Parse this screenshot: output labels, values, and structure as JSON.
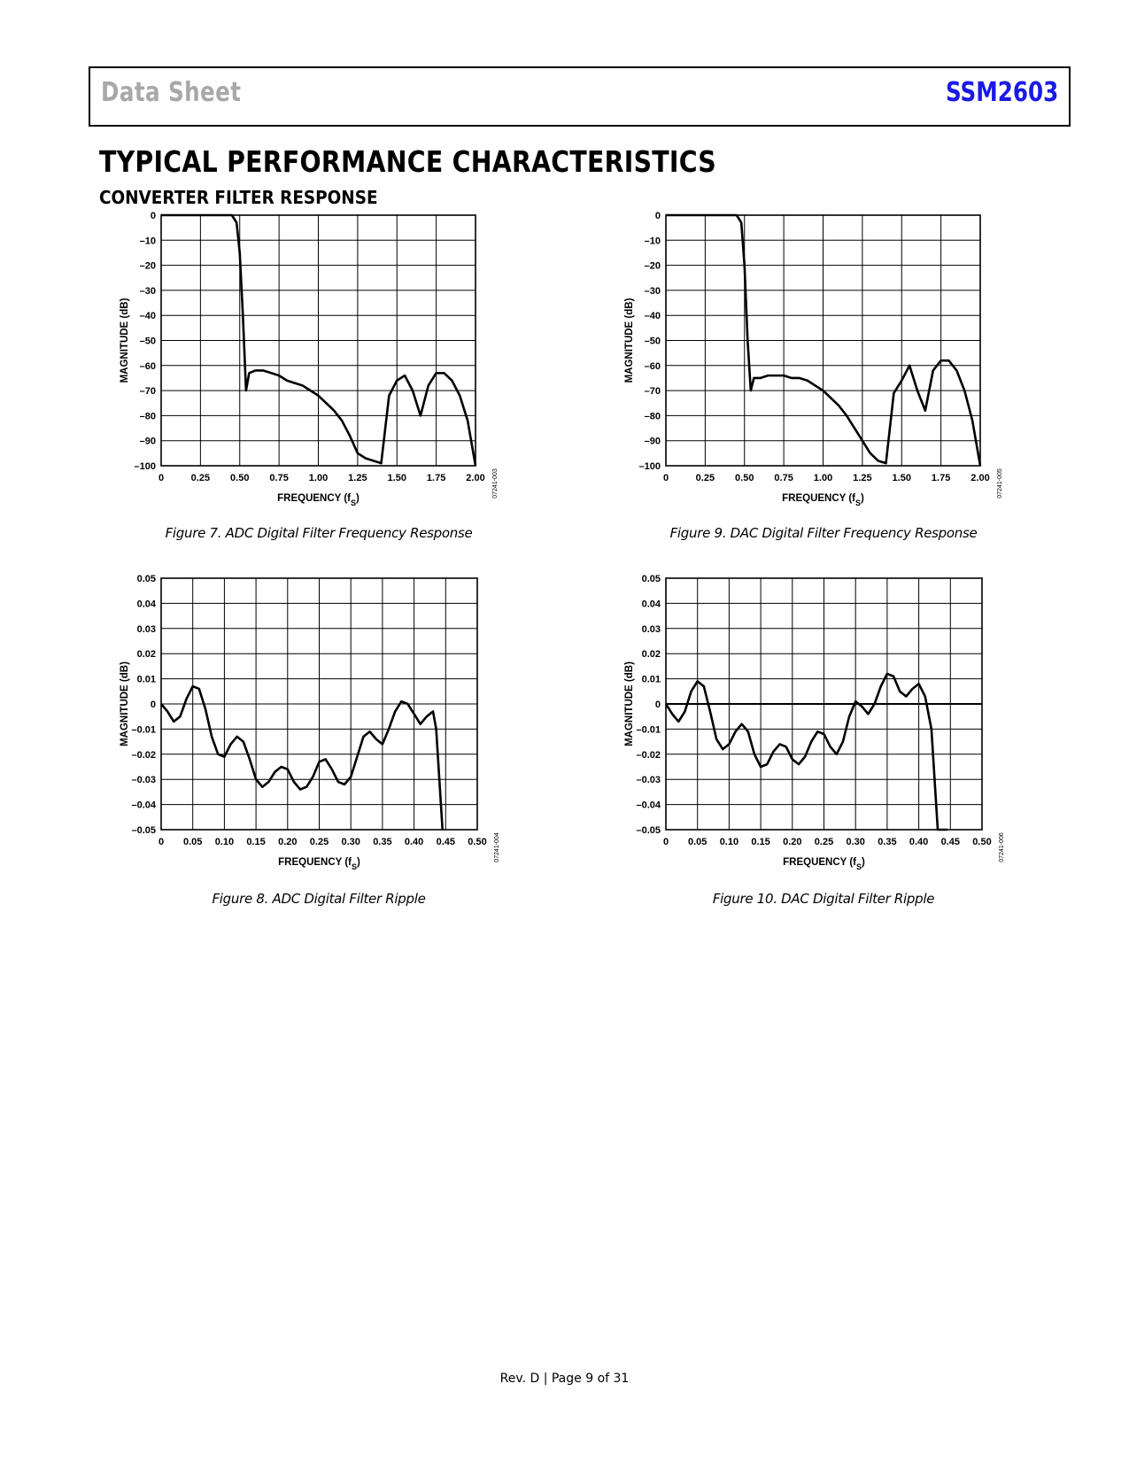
{
  "header": {
    "left": "Data Sheet",
    "right": "SSM2603",
    "right_color": "#1a1ae6",
    "left_color": "#a8a8a8"
  },
  "page_title": "TYPICAL PERFORMANCE CHARACTERISTICS",
  "section_title": "CONVERTER FILTER RESPONSE",
  "figures": [
    {
      "caption": "Figure 7. ADC Digital Filter Frequency Response",
      "code": "07241-003"
    },
    {
      "caption": "Figure 9. DAC Digital Filter Frequency Response",
      "code": "07241-005"
    },
    {
      "caption": "Figure 8. ADC Digital Filter Ripple",
      "code": "07241-004"
    },
    {
      "caption": "Figure 10. DAC Digital Filter Ripple",
      "code": "07241-006"
    }
  ],
  "footer": "Rev. D | Page 9 of 31",
  "chart_data": [
    {
      "type": "line",
      "ylabel": "MAGNITUDE (dB)",
      "xlabel": "FREQUENCY (fS)",
      "xlim": [
        0,
        2.0
      ],
      "ylim": [
        -100,
        0
      ],
      "xticks": [
        "0",
        "0.25",
        "0.50",
        "0.75",
        "1.00",
        "1.25",
        "1.50",
        "1.75",
        "2.00"
      ],
      "yticks": [
        "0",
        "–10",
        "–20",
        "–30",
        "–40",
        "–50",
        "–60",
        "–70",
        "–80",
        "–90",
        "–100"
      ],
      "grid": true,
      "x": [
        0,
        0.45,
        0.48,
        0.5,
        0.52,
        0.54,
        0.56,
        0.6,
        0.65,
        0.7,
        0.75,
        0.8,
        0.85,
        0.9,
        0.95,
        1.0,
        1.05,
        1.1,
        1.15,
        1.2,
        1.25,
        1.3,
        1.35,
        1.4,
        1.45,
        1.5,
        1.55,
        1.6,
        1.65,
        1.7,
        1.75,
        1.8,
        1.85,
        1.9,
        1.95,
        2.0
      ],
      "y": [
        0,
        0,
        -3,
        -15,
        -40,
        -70,
        -63,
        -62,
        -62,
        -63,
        -64,
        -66,
        -67,
        -68,
        -70,
        -72,
        -75,
        -78,
        -82,
        -88,
        -95,
        -97,
        -98,
        -99,
        -72,
        -66,
        -64,
        -70,
        -80,
        -68,
        -63,
        -63,
        -66,
        -72,
        -82,
        -100
      ]
    },
    {
      "type": "line",
      "ylabel": "MAGNITUDE (dB)",
      "xlabel": "FREQUENCY (fS)",
      "xlim": [
        0,
        2.0
      ],
      "ylim": [
        -100,
        0
      ],
      "xticks": [
        "0",
        "0.25",
        "0.50",
        "0.75",
        "1.00",
        "1.25",
        "1.50",
        "1.75",
        "2.00"
      ],
      "yticks": [
        "0",
        "–10",
        "–20",
        "–30",
        "–40",
        "–50",
        "–60",
        "–70",
        "–80",
        "–90",
        "–100"
      ],
      "grid": true,
      "x": [
        0,
        0.45,
        0.48,
        0.5,
        0.52,
        0.54,
        0.56,
        0.6,
        0.65,
        0.7,
        0.75,
        0.8,
        0.85,
        0.9,
        0.95,
        1.0,
        1.05,
        1.1,
        1.15,
        1.2,
        1.25,
        1.3,
        1.35,
        1.4,
        1.45,
        1.5,
        1.55,
        1.6,
        1.65,
        1.7,
        1.75,
        1.8,
        1.85,
        1.9,
        1.95,
        2.0
      ],
      "y": [
        0,
        0,
        -3,
        -20,
        -50,
        -70,
        -65,
        -65,
        -64,
        -64,
        -64,
        -65,
        -65,
        -66,
        -68,
        -70,
        -73,
        -76,
        -80,
        -85,
        -90,
        -95,
        -98,
        -99,
        -71,
        -66,
        -60,
        -70,
        -78,
        -62,
        -58,
        -58,
        -62,
        -70,
        -82,
        -100
      ]
    },
    {
      "type": "line",
      "ylabel": "MAGNITUDE (dB)",
      "xlabel": "FREQUENCY (fS)",
      "xlim": [
        0,
        0.5
      ],
      "ylim": [
        -0.05,
        0.05
      ],
      "xticks": [
        "0",
        "0.05",
        "0.10",
        "0.15",
        "0.20",
        "0.25",
        "0.30",
        "0.35",
        "0.40",
        "0.45",
        "0.50"
      ],
      "yticks": [
        "0.05",
        "0.04",
        "0.03",
        "0.02",
        "0.01",
        "0",
        "–0.01",
        "–0.02",
        "–0.03",
        "–0.04",
        "–0.05"
      ],
      "grid": true,
      "x": [
        0,
        0.01,
        0.02,
        0.03,
        0.04,
        0.05,
        0.06,
        0.07,
        0.08,
        0.09,
        0.1,
        0.11,
        0.12,
        0.13,
        0.14,
        0.15,
        0.16,
        0.17,
        0.18,
        0.19,
        0.2,
        0.21,
        0.22,
        0.23,
        0.24,
        0.25,
        0.26,
        0.27,
        0.28,
        0.29,
        0.3,
        0.31,
        0.32,
        0.33,
        0.34,
        0.35,
        0.36,
        0.37,
        0.38,
        0.39,
        0.4,
        0.41,
        0.42,
        0.43,
        0.435,
        0.44,
        0.445
      ],
      "y": [
        0,
        -0.003,
        -0.007,
        -0.005,
        0.002,
        0.007,
        0.006,
        -0.002,
        -0.013,
        -0.02,
        -0.021,
        -0.016,
        -0.013,
        -0.015,
        -0.022,
        -0.03,
        -0.033,
        -0.031,
        -0.027,
        -0.025,
        -0.026,
        -0.031,
        -0.034,
        -0.033,
        -0.029,
        -0.023,
        -0.022,
        -0.026,
        -0.031,
        -0.032,
        -0.029,
        -0.021,
        -0.013,
        -0.011,
        -0.014,
        -0.016,
        -0.01,
        -0.003,
        0.001,
        0.0,
        -0.004,
        -0.008,
        -0.005,
        -0.003,
        -0.01,
        -0.03,
        -0.05
      ]
    },
    {
      "type": "line",
      "ylabel": "MAGNITUDE (dB)",
      "xlabel": "FREQUENCY (fS)",
      "xlim": [
        0,
        0.5
      ],
      "ylim": [
        -0.05,
        0.05
      ],
      "xticks": [
        "0",
        "0.05",
        "0.10",
        "0.15",
        "0.20",
        "0.25",
        "0.30",
        "0.35",
        "0.40",
        "0.45",
        "0.50"
      ],
      "yticks": [
        "0.05",
        "0.04",
        "0.03",
        "0.02",
        "0.01",
        "0",
        "–0.01",
        "–0.02",
        "–0.03",
        "–0.04",
        "–0.05"
      ],
      "grid": true,
      "reference_line": 0,
      "x": [
        0,
        0.01,
        0.02,
        0.03,
        0.04,
        0.05,
        0.06,
        0.07,
        0.08,
        0.09,
        0.1,
        0.11,
        0.12,
        0.13,
        0.14,
        0.15,
        0.16,
        0.17,
        0.18,
        0.19,
        0.2,
        0.21,
        0.22,
        0.23,
        0.24,
        0.25,
        0.26,
        0.27,
        0.28,
        0.29,
        0.3,
        0.31,
        0.32,
        0.33,
        0.34,
        0.35,
        0.36,
        0.37,
        0.38,
        0.39,
        0.4,
        0.41,
        0.42,
        0.425,
        0.43,
        0.435,
        0.44,
        0.445
      ],
      "y": [
        0,
        -0.004,
        -0.007,
        -0.003,
        0.005,
        0.009,
        0.007,
        -0.003,
        -0.014,
        -0.018,
        -0.016,
        -0.011,
        -0.008,
        -0.011,
        -0.02,
        -0.025,
        -0.024,
        -0.019,
        -0.016,
        -0.017,
        -0.022,
        -0.024,
        -0.021,
        -0.015,
        -0.011,
        -0.012,
        -0.017,
        -0.02,
        -0.015,
        -0.005,
        0.001,
        -0.001,
        -0.004,
        0.0,
        0.007,
        0.012,
        0.011,
        0.005,
        0.003,
        0.006,
        0.008,
        0.003,
        -0.01,
        -0.03,
        -0.05,
        -0.05,
        -0.05,
        -0.05
      ]
    }
  ]
}
